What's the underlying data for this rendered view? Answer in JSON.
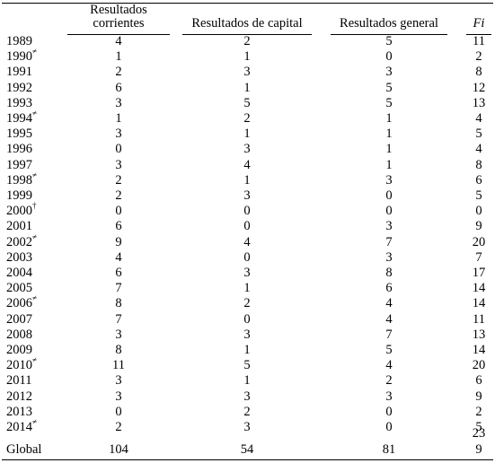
{
  "headers": {
    "col1_line1": "Resultados",
    "col1_line2": "corrientes",
    "col2": "Resultados de capital",
    "col3": "Resultados general",
    "col4": "Fi"
  },
  "rows": [
    {
      "year": "1989",
      "mark": "",
      "c1": "4",
      "c2": "2",
      "c3": "5",
      "fi": "11"
    },
    {
      "year": "1990",
      "mark": "≠",
      "c1": "1",
      "c2": "1",
      "c3": "0",
      "fi": "2"
    },
    {
      "year": "1991",
      "mark": "",
      "c1": "2",
      "c2": "3",
      "c3": "3",
      "fi": "8"
    },
    {
      "year": "1992",
      "mark": "",
      "c1": "6",
      "c2": "1",
      "c3": "5",
      "fi": "12"
    },
    {
      "year": "1993",
      "mark": "",
      "c1": "3",
      "c2": "5",
      "c3": "5",
      "fi": "13"
    },
    {
      "year": "1994",
      "mark": "≠",
      "c1": "1",
      "c2": "2",
      "c3": "1",
      "fi": "4"
    },
    {
      "year": "1995",
      "mark": "",
      "c1": "3",
      "c2": "1",
      "c3": "1",
      "fi": "5"
    },
    {
      "year": "1996",
      "mark": "",
      "c1": "0",
      "c2": "3",
      "c3": "1",
      "fi": "4"
    },
    {
      "year": "1997",
      "mark": "",
      "c1": "3",
      "c2": "4",
      "c3": "1",
      "fi": "8"
    },
    {
      "year": "1998",
      "mark": "≠",
      "c1": "2",
      "c2": "1",
      "c3": "3",
      "fi": "6"
    },
    {
      "year": "1999",
      "mark": "",
      "c1": "2",
      "c2": "3",
      "c3": "0",
      "fi": "5"
    },
    {
      "year": "2000",
      "mark": "†",
      "c1": "0",
      "c2": "0",
      "c3": "0",
      "fi": "0"
    },
    {
      "year": "2001",
      "mark": "",
      "c1": "6",
      "c2": "0",
      "c3": "3",
      "fi": "9"
    },
    {
      "year": "2002",
      "mark": "≠",
      "c1": "9",
      "c2": "4",
      "c3": "7",
      "fi": "20"
    },
    {
      "year": "2003",
      "mark": "",
      "c1": "4",
      "c2": "0",
      "c3": "3",
      "fi": "7"
    },
    {
      "year": "2004",
      "mark": "",
      "c1": "6",
      "c2": "3",
      "c3": "8",
      "fi": "17"
    },
    {
      "year": "2005",
      "mark": "",
      "c1": "7",
      "c2": "1",
      "c3": "6",
      "fi": "14"
    },
    {
      "year": "2006",
      "mark": "≠",
      "c1": "8",
      "c2": "2",
      "c3": "4",
      "fi": "14"
    },
    {
      "year": "2007",
      "mark": "",
      "c1": "7",
      "c2": "0",
      "c3": "4",
      "fi": "11"
    },
    {
      "year": "2008",
      "mark": "",
      "c1": "3",
      "c2": "3",
      "c3": "7",
      "fi": "13"
    },
    {
      "year": "2009",
      "mark": "",
      "c1": "8",
      "c2": "1",
      "c3": "5",
      "fi": "14"
    },
    {
      "year": "2010",
      "mark": "≠",
      "c1": "11",
      "c2": "5",
      "c3": "4",
      "fi": "20"
    },
    {
      "year": "2011",
      "mark": "",
      "c1": "3",
      "c2": "1",
      "c3": "2",
      "fi": "6"
    },
    {
      "year": "2012",
      "mark": "",
      "c1": "3",
      "c2": "3",
      "c3": "3",
      "fi": "9"
    },
    {
      "year": "2013",
      "mark": "",
      "c1": "0",
      "c2": "2",
      "c3": "0",
      "fi": "2"
    },
    {
      "year": "2014",
      "mark": "≠",
      "c1": "2",
      "c2": "3",
      "c3": "0",
      "fi": "5"
    }
  ],
  "total": {
    "label": "Global",
    "c1": "104",
    "c2": "54",
    "c3": "81",
    "fi_line1": "23",
    "fi_line2": "9"
  }
}
